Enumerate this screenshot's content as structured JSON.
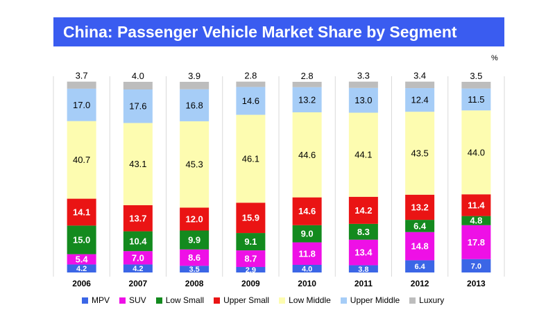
{
  "title": "China: Passenger Vehicle Market Share by Segment",
  "unit": "%",
  "chart_data": {
    "type": "bar",
    "stacked": true,
    "categories": [
      "2006",
      "2007",
      "2008",
      "2009",
      "2010",
      "2011",
      "2012",
      "2013"
    ],
    "series": [
      {
        "name": "MPV",
        "color": "#3b66e6",
        "values": [
          4.2,
          4.2,
          3.5,
          2.9,
          4.0,
          3.8,
          6.4,
          7.0
        ]
      },
      {
        "name": "SUV",
        "color": "#ee10e6",
        "values": [
          5.4,
          7.0,
          8.6,
          8.7,
          11.8,
          13.4,
          14.8,
          17.8
        ]
      },
      {
        "name": "Low Small",
        "color": "#138a1e",
        "values": [
          15.0,
          10.4,
          9.9,
          9.1,
          9.0,
          8.3,
          6.4,
          4.8
        ]
      },
      {
        "name": "Upper Small",
        "color": "#ea1414",
        "values": [
          14.1,
          13.7,
          12.0,
          15.9,
          14.6,
          14.2,
          13.2,
          11.4
        ]
      },
      {
        "name": "Low Middle",
        "color": "#fdfcb0",
        "values": [
          40.7,
          43.1,
          45.3,
          46.1,
          44.6,
          44.1,
          43.5,
          44.0
        ]
      },
      {
        "name": "Upper Middle",
        "color": "#a6cdf7",
        "values": [
          17.0,
          17.6,
          16.8,
          14.6,
          13.2,
          13.0,
          12.4,
          11.5
        ]
      },
      {
        "name": "Luxury",
        "color": "#bdbdbd",
        "values": [
          3.7,
          4.0,
          3.9,
          2.8,
          2.8,
          3.3,
          3.4,
          3.5
        ]
      }
    ]
  }
}
